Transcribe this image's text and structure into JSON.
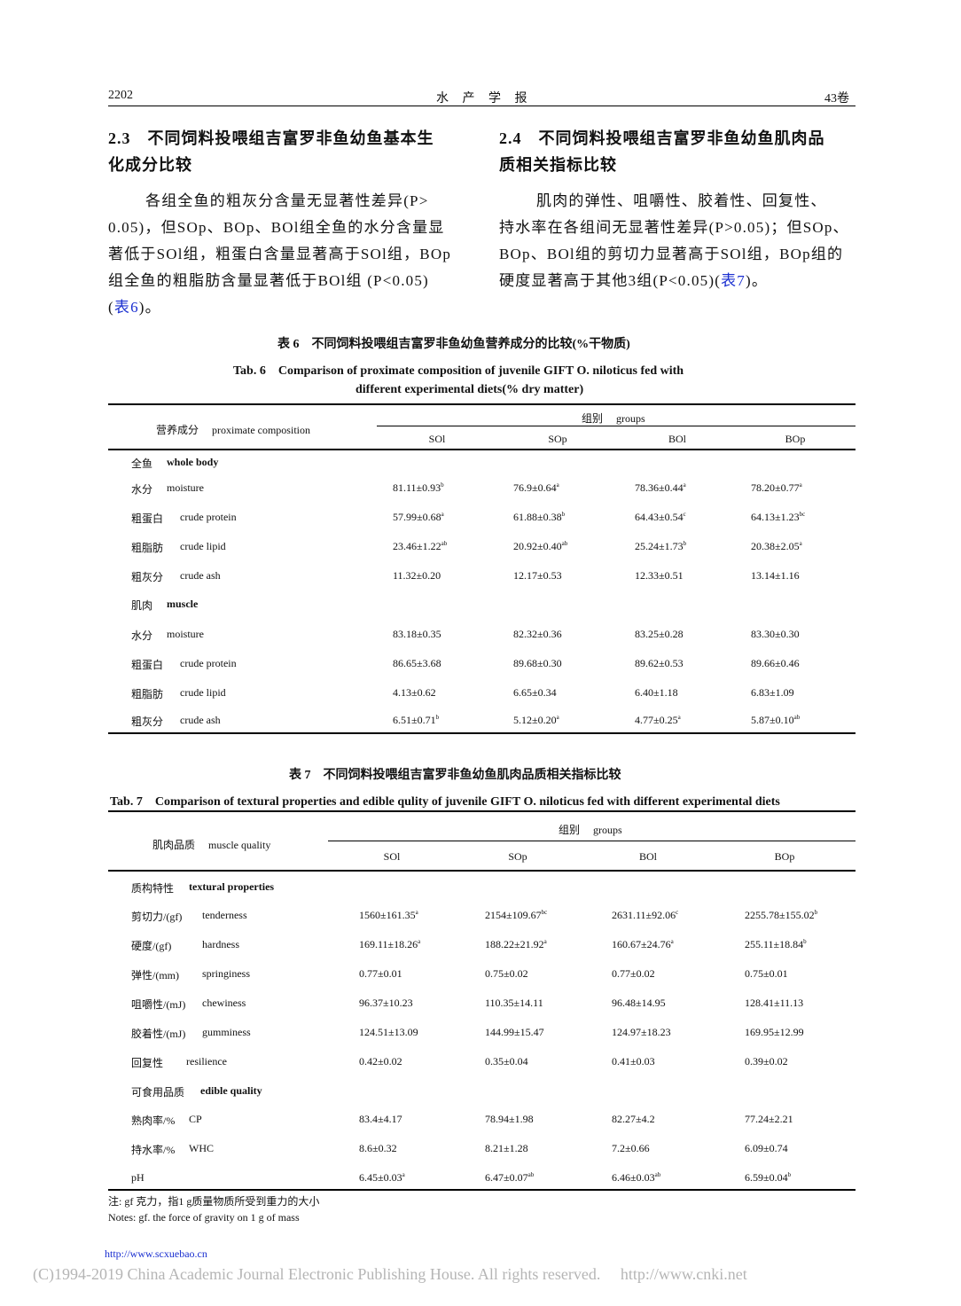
{
  "header": {
    "page": "2202",
    "journal": "水 产 学 报",
    "volume": "43卷"
  },
  "sec23": {
    "title_l1": "2.3　不同饲料投喂组吉富罗非鱼幼鱼基本生",
    "title_l2": "化成分比较",
    "lines": [
      "各组全鱼的粗灰分含量无显著性差异(P>",
      "0.05)，但SOp、BOp、BOl组全鱼的水分含量显",
      "著低于SOl组，粗蛋白含量显著高于SOl组，BOp",
      "组全鱼的粗脂肪含量显著低于BOl组 (P<0.05)"
    ],
    "ref_open": "(",
    "ref": "表6",
    "ref_close": ")。"
  },
  "sec24": {
    "title_l1": "2.4　不同饲料投喂组吉富罗非鱼幼鱼肌肉品",
    "title_l2": "质相关指标比较",
    "lines": [
      "肌肉的弹性、咀嚼性、胶着性、回复性、",
      "持水率在各组间无显著性差异(P>0.05)；但SOp、",
      "BOp、BOl组的剪切力显著高于SOl组，BOp组的"
    ],
    "last": "硬度显著高于其他3组(P<0.05)(",
    "ref": "表7",
    "last_close": ")。"
  },
  "table6": {
    "cap_cn": "表 6　不同饲料投喂组吉富罗非鱼幼鱼营养成分的比较(%干物质)",
    "cap_en1": "Tab. 6　Comparison of proximate composition of juvenile GIFT O. niloticus fed with",
    "cap_en2": "different experimental diets(% dry matter)",
    "row_header": "营养成分　 proximate composition",
    "group_header": "组别　 groups",
    "columns": [
      "SOl",
      "SOp",
      "BOl",
      "BOp"
    ],
    "rows": [
      {
        "cn": "全鱼",
        "en": "whole body",
        "section": true
      },
      {
        "cn": "水分",
        "en": "moisture",
        "cells": [
          [
            "81.11±0.93",
            "b"
          ],
          [
            "76.9±0.64",
            "a"
          ],
          [
            "78.36±0.44",
            "a"
          ],
          [
            "78.20±0.77",
            "a"
          ]
        ]
      },
      {
        "cn": "粗蛋白",
        "en": "crude protein",
        "cells": [
          [
            "57.99±0.68",
            "a"
          ],
          [
            "61.88±0.38",
            "b"
          ],
          [
            "64.43±0.54",
            "c"
          ],
          [
            "64.13±1.23",
            "bc"
          ]
        ]
      },
      {
        "cn": "粗脂肪",
        "en": "crude lipid",
        "cells": [
          [
            "23.46±1.22",
            "ab"
          ],
          [
            "20.92±0.40",
            "ab"
          ],
          [
            "25.24±1.73",
            "b"
          ],
          [
            "20.38±2.05",
            "a"
          ]
        ]
      },
      {
        "cn": "粗灰分",
        "en": "crude ash",
        "cells": [
          [
            "11.32±0.20",
            ""
          ],
          [
            "12.17±0.53",
            ""
          ],
          [
            "12.33±0.51",
            ""
          ],
          [
            "13.14±1.16",
            ""
          ]
        ]
      },
      {
        "cn": "肌肉",
        "en": "muscle",
        "section": true
      },
      {
        "cn": "水分",
        "en": "moisture",
        "cells": [
          [
            "83.18±0.35",
            ""
          ],
          [
            "82.32±0.36",
            ""
          ],
          [
            "83.25±0.28",
            ""
          ],
          [
            "83.30±0.30",
            ""
          ]
        ]
      },
      {
        "cn": "粗蛋白",
        "en": "crude protein",
        "cells": [
          [
            "86.65±3.68",
            ""
          ],
          [
            "89.68±0.30",
            ""
          ],
          [
            "89.62±0.53",
            ""
          ],
          [
            "89.66±0.46",
            ""
          ]
        ]
      },
      {
        "cn": "粗脂肪",
        "en": "crude lipid",
        "cells": [
          [
            "4.13±0.62",
            ""
          ],
          [
            "6.65±0.34",
            ""
          ],
          [
            "6.40±1.18",
            ""
          ],
          [
            "6.83±1.09",
            ""
          ]
        ]
      },
      {
        "cn": "粗灰分",
        "en": "crude ash",
        "cells": [
          [
            "6.51±0.71",
            "b"
          ],
          [
            "5.12±0.20",
            "a"
          ],
          [
            "4.77±0.25",
            "a"
          ],
          [
            "5.87±0.10",
            "ab"
          ]
        ]
      }
    ]
  },
  "table7": {
    "cap_cn": "表 7　不同饲料投喂组吉富罗非鱼幼鱼肌肉品质相关指标比较",
    "cap_en": "Tab. 7　Comparison of textural properties and edible qulity of juvenile GIFT O. niloticus fed with different experimental diets",
    "row_header": "肌肉品质　 muscle quality",
    "group_header": "组别　 groups",
    "columns": [
      "SOl",
      "SOp",
      "BOl",
      "BOp"
    ],
    "rows": [
      {
        "cn": "质构特性",
        "en": "textural properties",
        "section": true
      },
      {
        "cn": "剪切力/(gf)",
        "en": "tenderness",
        "cells": [
          [
            "1560±161.35",
            "a"
          ],
          [
            "2154±109.67",
            "bc"
          ],
          [
            "2631.11±92.06",
            "c"
          ],
          [
            "2255.78±155.02",
            "b"
          ]
        ]
      },
      {
        "cn": "硬度/(gf)",
        "en": "hardness",
        "cells": [
          [
            "169.11±18.26",
            "a"
          ],
          [
            "188.22±21.92",
            "a"
          ],
          [
            "160.67±24.76",
            "a"
          ],
          [
            "255.11±18.84",
            "b"
          ]
        ]
      },
      {
        "cn": "弹性/(mm)",
        "en": "springiness",
        "cells": [
          [
            "0.77±0.01",
            ""
          ],
          [
            "0.75±0.02",
            ""
          ],
          [
            "0.77±0.02",
            ""
          ],
          [
            "0.75±0.01",
            ""
          ]
        ]
      },
      {
        "cn": "咀嚼性/(mJ)",
        "en": "chewiness",
        "cells": [
          [
            "96.37±10.23",
            ""
          ],
          [
            "110.35±14.11",
            ""
          ],
          [
            "96.48±14.95",
            ""
          ],
          [
            "128.41±11.13",
            ""
          ]
        ]
      },
      {
        "cn": "胶着性/(mJ)",
        "en": "gumminess",
        "cells": [
          [
            "124.51±13.09",
            ""
          ],
          [
            "144.99±15.47",
            ""
          ],
          [
            "124.97±18.23",
            ""
          ],
          [
            "169.95±12.99",
            ""
          ]
        ]
      },
      {
        "cn": "回复性",
        "en": "resilience",
        "cells": [
          [
            "0.42±0.02",
            ""
          ],
          [
            "0.35±0.04",
            ""
          ],
          [
            "0.41±0.03",
            ""
          ],
          [
            "0.39±0.02",
            ""
          ]
        ]
      },
      {
        "cn": "可食用品质",
        "en": "edible quality",
        "section": true
      },
      {
        "cn": "熟肉率/%",
        "en": "CP",
        "cells": [
          [
            "83.4±4.17",
            ""
          ],
          [
            "78.94±1.98",
            ""
          ],
          [
            "82.27±4.2",
            ""
          ],
          [
            "77.24±2.21",
            ""
          ]
        ]
      },
      {
        "cn": "持水率/%",
        "en": "WHC",
        "cells": [
          [
            "8.6±0.32",
            ""
          ],
          [
            "8.21±1.28",
            ""
          ],
          [
            "7.2±0.66",
            ""
          ],
          [
            "6.09±0.74",
            ""
          ]
        ]
      },
      {
        "cn": "pH",
        "en": "",
        "cells": [
          [
            "6.45±0.03",
            "a"
          ],
          [
            "6.47±0.07",
            "ab"
          ],
          [
            "6.46±0.03",
            "ab"
          ],
          [
            "6.59±0.04",
            "b"
          ]
        ]
      }
    ],
    "note_cn": "注: gf 克力，指1 g质量物质所受到重力的大小",
    "note_en": "Notes: gf. the force of gravity on 1 g of mass"
  },
  "footer": {
    "url": "http://www.scxuebao.cn",
    "copyright": "(C)1994-2019 China Academic Journal Electronic Publishing House. All rights reserved.　 http://www.cnki.net"
  }
}
